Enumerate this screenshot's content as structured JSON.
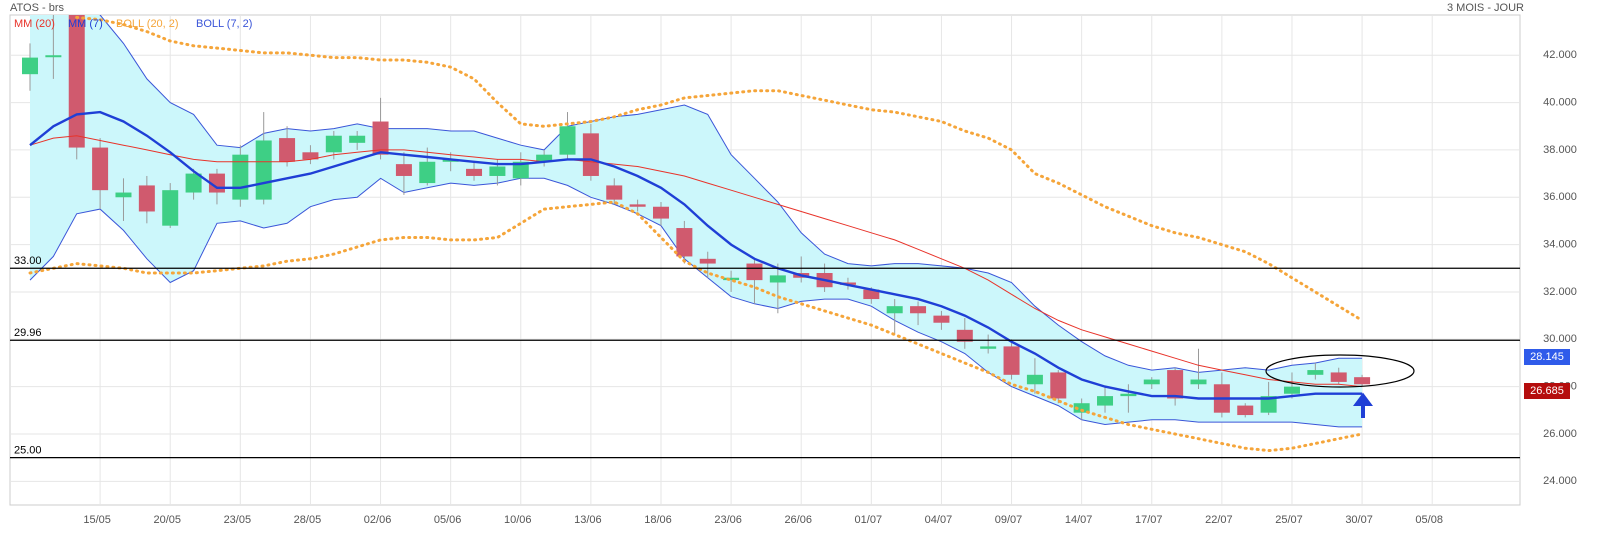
{
  "chart_data": {
    "type": "candlestick",
    "title": "ATOS - brs",
    "subtitle": "3 MOIS - JOUR",
    "categories": [
      null,
      null,
      null,
      "15/05",
      null,
      null,
      "20/05",
      null,
      null,
      "23/05",
      null,
      null,
      "28/05",
      null,
      null,
      "02/06",
      null,
      null,
      "05/06",
      null,
      null,
      "10/06",
      null,
      null,
      "13/06",
      null,
      null,
      "18/06",
      null,
      null,
      "23/06",
      null,
      null,
      "26/06",
      null,
      null,
      "01/07",
      null,
      null,
      "04/07",
      null,
      null,
      "09/07",
      null,
      null,
      "14/07",
      null,
      null,
      "17/07",
      null,
      null,
      "22/07",
      null,
      null,
      "25/07",
      null,
      null,
      "30/07",
      null,
      null,
      "05/08"
    ],
    "open": [
      41.2,
      42.0,
      43.7,
      38.1,
      36.0,
      36.5,
      34.8,
      36.2,
      37.0,
      35.9,
      35.9,
      38.5,
      37.9,
      37.9,
      38.3,
      39.2,
      37.4,
      36.6,
      37.5,
      37.2,
      36.9,
      36.8,
      37.5,
      37.8,
      38.7,
      36.5,
      35.7,
      35.6,
      34.7,
      33.4,
      32.5,
      33.2,
      32.4,
      32.8,
      32.8,
      32.4,
      32.1,
      31.1,
      31.4,
      31.0,
      30.4,
      29.6,
      29.7,
      28.1,
      28.6,
      26.9,
      27.2,
      27.6,
      28.1,
      28.7,
      28.1,
      28.1,
      27.2,
      26.9,
      27.7,
      28.5,
      28.6,
      28.4,
      null,
      null,
      null
    ],
    "high": [
      42.5,
      43.7,
      43.7,
      38.5,
      36.8,
      36.9,
      36.6,
      37.2,
      37.2,
      38.2,
      39.6,
      39.0,
      38.2,
      38.8,
      38.8,
      40.2,
      37.9,
      38.1,
      37.9,
      37.5,
      37.6,
      37.9,
      38.0,
      39.6,
      39.1,
      36.8,
      35.9,
      35.8,
      35.0,
      33.7,
      32.9,
      33.4,
      33.2,
      33.5,
      33.2,
      32.6,
      32.2,
      31.7,
      31.6,
      31.2,
      30.9,
      30.2,
      30.0,
      29.2,
      28.7,
      27.5,
      28.0,
      28.1,
      28.4,
      28.8,
      29.6,
      28.6,
      27.3,
      28.2,
      28.6,
      29.0,
      28.8,
      28.5,
      null,
      null,
      null
    ],
    "low": [
      40.5,
      41.0,
      37.6,
      35.5,
      35.0,
      34.9,
      34.7,
      35.9,
      35.7,
      35.6,
      35.7,
      37.3,
      37.4,
      37.6,
      38.0,
      37.6,
      36.1,
      36.5,
      37.1,
      36.7,
      36.5,
      36.5,
      37.3,
      37.6,
      36.7,
      35.7,
      35.4,
      34.8,
      33.2,
      32.6,
      32.0,
      31.5,
      31.1,
      32.4,
      32.0,
      32.1,
      31.5,
      30.2,
      30.6,
      30.4,
      29.6,
      29.4,
      28.3,
      27.7,
      27.3,
      26.6,
      26.9,
      26.9,
      27.9,
      27.2,
      27.9,
      26.7,
      26.7,
      26.8,
      27.5,
      28.3,
      28.1,
      28.0,
      null,
      null,
      null
    ],
    "close": [
      41.9,
      42.0,
      38.1,
      36.3,
      36.2,
      35.4,
      36.3,
      37.0,
      36.2,
      37.8,
      38.4,
      37.5,
      37.6,
      38.6,
      38.6,
      37.8,
      36.9,
      37.5,
      37.6,
      36.9,
      37.3,
      37.5,
      37.8,
      39.0,
      36.9,
      35.9,
      35.6,
      35.1,
      33.5,
      33.2,
      32.6,
      32.5,
      32.7,
      32.6,
      32.2,
      32.3,
      31.7,
      31.4,
      31.1,
      30.7,
      29.9,
      29.7,
      28.5,
      28.5,
      27.5,
      27.3,
      27.6,
      27.7,
      28.3,
      27.5,
      28.3,
      26.9,
      26.8,
      27.6,
      28.0,
      28.7,
      28.2,
      28.1,
      null,
      null,
      null
    ],
    "up_color": "#3ecf85",
    "down_color": "#d05a6e",
    "series": [
      {
        "name": "MM (20)",
        "color": "#e8332a",
        "style": "thin",
        "values": [
          38.2,
          38.5,
          38.6,
          38.4,
          38.2,
          38.0,
          37.8,
          37.6,
          37.5,
          37.5,
          37.5,
          37.5,
          37.6,
          37.8,
          37.9,
          38.0,
          38.0,
          37.9,
          37.8,
          37.7,
          37.6,
          37.6,
          37.5,
          37.6,
          37.5,
          37.4,
          37.3,
          37.1,
          36.9,
          36.6,
          36.3,
          36.0,
          35.7,
          35.4,
          35.1,
          34.8,
          34.5,
          34.2,
          33.8,
          33.4,
          33.0,
          32.5,
          31.9,
          31.3,
          30.8,
          30.4,
          30.1,
          29.8,
          29.5,
          29.2,
          28.9,
          28.7,
          28.5,
          28.3,
          28.2,
          28.1,
          28.1,
          28.0,
          null,
          null,
          null
        ]
      },
      {
        "name": "MM (7)",
        "color": "#1f3fd6",
        "style": "thick",
        "values": [
          38.2,
          39.0,
          39.5,
          39.6,
          39.2,
          38.6,
          37.9,
          37.1,
          36.4,
          36.4,
          36.6,
          36.8,
          37.0,
          37.3,
          37.6,
          37.9,
          37.8,
          37.7,
          37.6,
          37.5,
          37.4,
          37.4,
          37.5,
          37.6,
          37.6,
          37.3,
          36.9,
          36.4,
          35.7,
          34.8,
          34.0,
          33.4,
          33.0,
          32.7,
          32.5,
          32.3,
          32.1,
          31.9,
          31.7,
          31.4,
          31.0,
          30.5,
          29.9,
          29.4,
          28.8,
          28.3,
          28.0,
          27.8,
          27.6,
          27.6,
          27.5,
          27.5,
          27.5,
          27.5,
          27.6,
          27.7,
          27.7,
          27.7,
          null,
          null,
          null
        ]
      },
      {
        "name": "BOLL (20, 2)",
        "color": "#f5a53a",
        "style": "dotted",
        "upper": [
          null,
          null,
          43.6,
          43.5,
          43.3,
          43.0,
          42.6,
          42.4,
          42.3,
          42.2,
          42.1,
          42.1,
          42.0,
          41.9,
          41.9,
          41.8,
          41.8,
          41.7,
          41.5,
          41.0,
          40.0,
          39.1,
          39.0,
          39.1,
          39.2,
          39.4,
          39.7,
          39.9,
          40.2,
          40.3,
          40.4,
          40.5,
          40.5,
          40.3,
          40.1,
          39.9,
          39.7,
          39.6,
          39.4,
          39.2,
          38.8,
          38.5,
          38.0,
          37.0,
          36.6,
          36.1,
          35.6,
          35.2,
          34.8,
          34.5,
          34.3,
          34.0,
          33.7,
          33.2,
          32.6,
          32.0,
          31.4,
          30.8,
          null,
          null,
          null
        ],
        "lower": [
          32.8,
          33.0,
          33.2,
          33.1,
          33.0,
          32.8,
          32.8,
          32.8,
          32.9,
          33.0,
          33.1,
          33.3,
          33.4,
          33.6,
          33.9,
          34.2,
          34.3,
          34.3,
          34.2,
          34.2,
          34.3,
          34.9,
          35.5,
          35.6,
          35.7,
          35.8,
          35.3,
          34.3,
          33.3,
          32.8,
          32.5,
          32.2,
          31.8,
          31.5,
          31.2,
          30.9,
          30.6,
          30.2,
          29.8,
          29.4,
          29.0,
          28.6,
          28.1,
          27.8,
          27.4,
          27.0,
          26.7,
          26.4,
          26.2,
          26.0,
          25.8,
          25.6,
          25.4,
          25.3,
          25.4,
          25.6,
          25.8,
          26.0,
          null,
          null,
          null
        ]
      },
      {
        "name": "BOLL (7, 2)",
        "color": "#3a55d8",
        "fill": "#ccf7fb",
        "style": "band",
        "upper": [
          44.5,
          45.0,
          44.5,
          43.7,
          42.5,
          41.0,
          40.0,
          39.5,
          38.2,
          38.1,
          38.7,
          38.9,
          38.8,
          38.9,
          39.1,
          38.9,
          38.9,
          38.9,
          38.8,
          38.8,
          38.5,
          38.2,
          38.0,
          39.0,
          39.2,
          39.4,
          39.5,
          39.7,
          39.9,
          39.5,
          37.8,
          36.8,
          35.8,
          34.5,
          33.6,
          33.2,
          33.1,
          33.2,
          33.2,
          33.1,
          33.0,
          32.8,
          32.4,
          31.4,
          30.6,
          29.9,
          29.3,
          28.9,
          28.7,
          28.8,
          28.6,
          28.7,
          28.8,
          28.7,
          28.9,
          29.0,
          29.2,
          29.2,
          null,
          null,
          null
        ],
        "lower": [
          32.5,
          33.5,
          35.3,
          35.5,
          34.6,
          33.4,
          32.4,
          32.9,
          34.9,
          35.0,
          34.7,
          34.9,
          35.6,
          35.9,
          36.0,
          36.8,
          36.2,
          36.4,
          36.6,
          36.5,
          36.6,
          36.8,
          36.8,
          36.5,
          36.0,
          35.7,
          35.3,
          34.8,
          33.4,
          32.6,
          31.8,
          31.5,
          31.3,
          31.6,
          31.7,
          31.7,
          31.4,
          30.8,
          30.3,
          29.9,
          29.4,
          28.6,
          28.0,
          27.6,
          27.2,
          26.6,
          26.4,
          26.5,
          26.6,
          26.6,
          26.5,
          26.5,
          26.5,
          26.5,
          26.5,
          26.4,
          26.3,
          26.3,
          null,
          null,
          null
        ]
      }
    ],
    "ylim": [
      23,
      43.7
    ],
    "yticks": [
      {
        "value": 24,
        "label": "24.000"
      },
      {
        "value": 26,
        "label": "26.000"
      },
      {
        "value": 28,
        "label": "28.000"
      },
      {
        "value": 30,
        "label": "30.000"
      },
      {
        "value": 32,
        "label": "32.000"
      },
      {
        "value": 34,
        "label": "34.000"
      },
      {
        "value": 36,
        "label": "36.000"
      },
      {
        "value": 38,
        "label": "38.000"
      },
      {
        "value": 40,
        "label": "40.000"
      },
      {
        "value": 42,
        "label": "42.000"
      }
    ],
    "hlines": [
      {
        "value": 33,
        "label": "33.00"
      },
      {
        "value": 29.96,
        "label": "29.96"
      },
      {
        "value": 25,
        "label": "25.00"
      }
    ],
    "price_tags": [
      {
        "label": "28.145",
        "color": "#2f5bea"
      },
      {
        "label": "26.685",
        "color": "#b50d0d"
      }
    ],
    "grid": true
  }
}
